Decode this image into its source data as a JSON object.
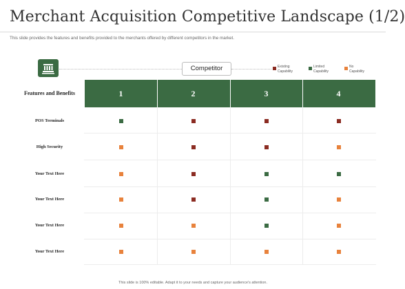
{
  "title": "Merchant Acquisition Competitive Landscape (1/2)",
  "subtitle": "This slide provides the features  and benefits provided to the merchants offered by different  competitors in the market.",
  "icon": "building-icon",
  "competitor_label": "Competitor",
  "legend": [
    {
      "key": "existing",
      "line1": "Existing",
      "line2": "Capability",
      "color": "#8b2c22"
    },
    {
      "key": "limited",
      "line1": "Limited",
      "line2": "Capability",
      "color": "#3b6b43"
    },
    {
      "key": "none",
      "line1": "No",
      "line2": "Capability",
      "color": "#e8823c"
    }
  ],
  "table": {
    "feature_header": "Features and Benefits",
    "columns": [
      "1",
      "2",
      "3",
      "4"
    ],
    "rows": [
      {
        "label": "POS Terminals",
        "values": [
          "limited",
          "existing",
          "existing",
          "existing"
        ]
      },
      {
        "label": "High Security",
        "values": [
          "none",
          "existing",
          "existing",
          "none"
        ]
      },
      {
        "label": "Your  Text Here",
        "values": [
          "none",
          "existing",
          "limited",
          "limited"
        ]
      },
      {
        "label": "Your Text Here",
        "values": [
          "none",
          "existing",
          "limited",
          "none"
        ]
      },
      {
        "label": "Your Text Here",
        "values": [
          "none",
          "none",
          "limited",
          "none"
        ]
      },
      {
        "label": "Your  Text Here",
        "values": [
          "none",
          "none",
          "none",
          "none"
        ]
      }
    ]
  },
  "footer": "This slide is 100% editable. Adapt it to your needs and capture your audience's attention."
}
